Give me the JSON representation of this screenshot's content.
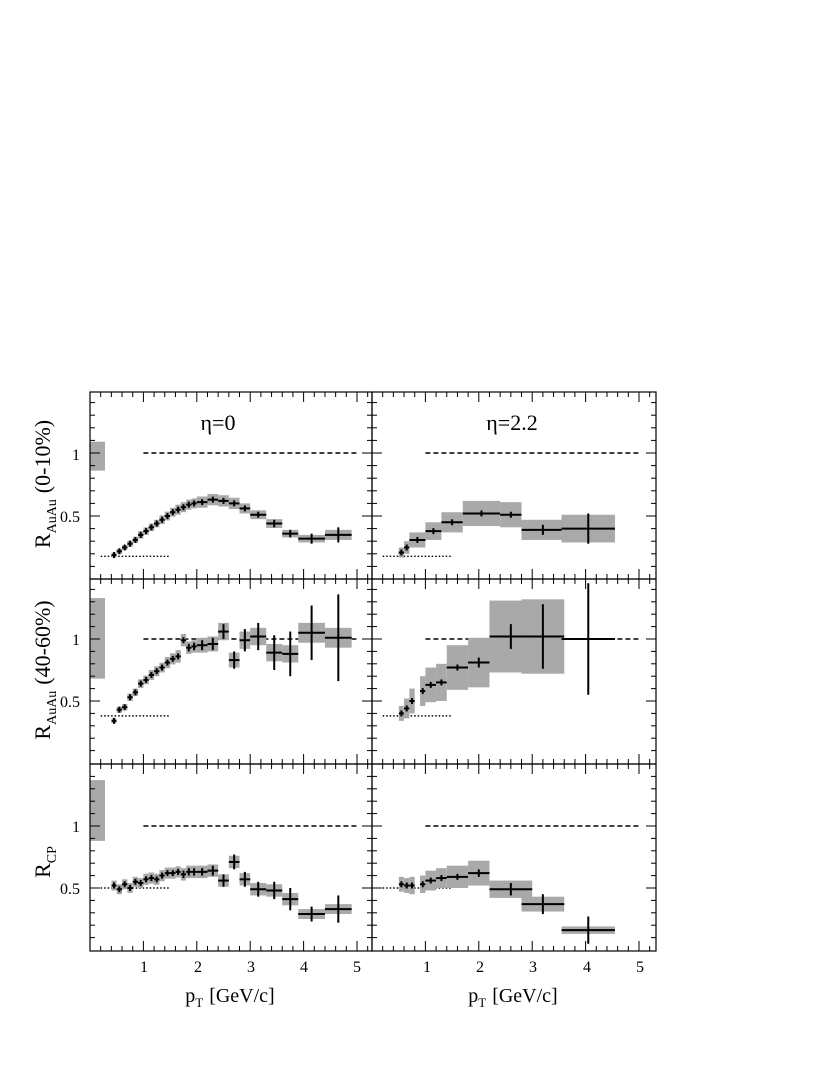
{
  "chart_data": [
    {
      "type": "scatter",
      "panel": "top-left",
      "annotation": "η=0",
      "ylabel": "R_AuAu (0-10%)",
      "xlim": [
        0,
        5.3
      ],
      "ylim": [
        0,
        1.5
      ],
      "reference_line": 1,
      "lower_line": {
        "y": 0.18,
        "x": [
          0.2,
          1.5
        ]
      },
      "norm_band": [
        0.86,
        1.09
      ],
      "points": [
        {
          "x": 0.45,
          "y": 0.19,
          "xe": 0.025,
          "ye": 0.0,
          "sys": 0.02
        },
        {
          "x": 0.55,
          "y": 0.22,
          "xe": 0.05,
          "ye": 0.0,
          "sys": 0.02
        },
        {
          "x": 0.65,
          "y": 0.25,
          "xe": 0.05,
          "ye": 0.0,
          "sys": 0.02
        },
        {
          "x": 0.75,
          "y": 0.28,
          "xe": 0.05,
          "ye": 0.0,
          "sys": 0.025
        },
        {
          "x": 0.85,
          "y": 0.31,
          "xe": 0.05,
          "ye": 0.0,
          "sys": 0.025
        },
        {
          "x": 0.95,
          "y": 0.35,
          "xe": 0.05,
          "ye": 0.0,
          "sys": 0.03
        },
        {
          "x": 1.05,
          "y": 0.38,
          "xe": 0.05,
          "ye": 0.0,
          "sys": 0.03
        },
        {
          "x": 1.15,
          "y": 0.41,
          "xe": 0.05,
          "ye": 0.0,
          "sys": 0.03
        },
        {
          "x": 1.25,
          "y": 0.44,
          "xe": 0.05,
          "ye": 0.0,
          "sys": 0.03
        },
        {
          "x": 1.35,
          "y": 0.47,
          "xe": 0.05,
          "ye": 0.0,
          "sys": 0.035
        },
        {
          "x": 1.45,
          "y": 0.5,
          "xe": 0.05,
          "ye": 0.0,
          "sys": 0.035
        },
        {
          "x": 1.55,
          "y": 0.53,
          "xe": 0.05,
          "ye": 0.0,
          "sys": 0.035
        },
        {
          "x": 1.65,
          "y": 0.55,
          "xe": 0.05,
          "ye": 0.0,
          "sys": 0.04
        },
        {
          "x": 1.75,
          "y": 0.57,
          "xe": 0.05,
          "ye": 0.0,
          "sys": 0.04
        },
        {
          "x": 1.85,
          "y": 0.59,
          "xe": 0.05,
          "ye": 0.0,
          "sys": 0.04
        },
        {
          "x": 1.95,
          "y": 0.6,
          "xe": 0.05,
          "ye": 0.0,
          "sys": 0.04
        },
        {
          "x": 2.1,
          "y": 0.61,
          "xe": 0.1,
          "ye": 0.01,
          "sys": 0.045
        },
        {
          "x": 2.3,
          "y": 0.63,
          "xe": 0.1,
          "ye": 0.01,
          "sys": 0.045
        },
        {
          "x": 2.5,
          "y": 0.62,
          "xe": 0.1,
          "ye": 0.01,
          "sys": 0.045
        },
        {
          "x": 2.7,
          "y": 0.6,
          "xe": 0.1,
          "ye": 0.01,
          "sys": 0.045
        },
        {
          "x": 2.9,
          "y": 0.56,
          "xe": 0.1,
          "ye": 0.02,
          "sys": 0.04
        },
        {
          "x": 3.15,
          "y": 0.51,
          "xe": 0.15,
          "ye": 0.02,
          "sys": 0.035
        },
        {
          "x": 3.45,
          "y": 0.44,
          "xe": 0.15,
          "ye": 0.03,
          "sys": 0.035
        },
        {
          "x": 3.75,
          "y": 0.36,
          "xe": 0.15,
          "ye": 0.03,
          "sys": 0.03
        },
        {
          "x": 4.15,
          "y": 0.32,
          "xe": 0.25,
          "ye": 0.04,
          "sys": 0.03
        },
        {
          "x": 4.65,
          "y": 0.35,
          "xe": 0.25,
          "ye": 0.06,
          "sys": 0.04
        }
      ]
    },
    {
      "type": "scatter",
      "panel": "top-right",
      "annotation": "η=2.2",
      "xlim": [
        0,
        5.3
      ],
      "ylim": [
        0,
        1.5
      ],
      "reference_line": 1,
      "lower_line": {
        "y": 0.18,
        "x": [
          0.2,
          1.5
        ]
      },
      "points": [
        {
          "x": 0.55,
          "y": 0.21,
          "xe": 0.05,
          "ye": 0.0,
          "sys": 0.04
        },
        {
          "x": 0.65,
          "y": 0.25,
          "xe": 0.05,
          "ye": 0.0,
          "sys": 0.05
        },
        {
          "x": 0.85,
          "y": 0.31,
          "xe": 0.15,
          "ye": 0.0,
          "sys": 0.06
        },
        {
          "x": 1.15,
          "y": 0.38,
          "xe": 0.15,
          "ye": 0.0,
          "sys": 0.07
        },
        {
          "x": 1.5,
          "y": 0.45,
          "xe": 0.2,
          "ye": 0.0,
          "sys": 0.08
        },
        {
          "x": 2.05,
          "y": 0.52,
          "xe": 0.35,
          "ye": 0.0,
          "sys": 0.1
        },
        {
          "x": 2.6,
          "y": 0.51,
          "xe": 0.2,
          "ye": 0.02,
          "sys": 0.1
        },
        {
          "x": 3.2,
          "y": 0.39,
          "xe": 0.4,
          "ye": 0.04,
          "sys": 0.08
        },
        {
          "x": 4.05,
          "y": 0.4,
          "xe": 0.5,
          "ye": 0.12,
          "sys": 0.11
        }
      ]
    },
    {
      "type": "scatter",
      "panel": "middle-left",
      "ylabel": "R_AuAu (40-60%)",
      "xlim": [
        0,
        5.3
      ],
      "ylim": [
        0.2,
        1.5
      ],
      "reference_line": 1,
      "lower_line": {
        "y": 0.38,
        "x": [
          0.2,
          1.5
        ]
      },
      "norm_band": [
        0.68,
        1.33
      ],
      "points": [
        {
          "x": 0.45,
          "y": 0.34,
          "xe": 0.025,
          "ye": 0.0,
          "sys": 0.02
        },
        {
          "x": 0.55,
          "y": 0.43,
          "xe": 0.05,
          "ye": 0.0,
          "sys": 0.025
        },
        {
          "x": 0.65,
          "y": 0.45,
          "xe": 0.05,
          "ye": 0.0,
          "sys": 0.025
        },
        {
          "x": 0.75,
          "y": 0.53,
          "xe": 0.05,
          "ye": 0.0,
          "sys": 0.03
        },
        {
          "x": 0.85,
          "y": 0.57,
          "xe": 0.05,
          "ye": 0.0,
          "sys": 0.03
        },
        {
          "x": 0.95,
          "y": 0.64,
          "xe": 0.05,
          "ye": 0.0,
          "sys": 0.035
        },
        {
          "x": 1.05,
          "y": 0.67,
          "xe": 0.05,
          "ye": 0.0,
          "sys": 0.035
        },
        {
          "x": 1.15,
          "y": 0.71,
          "xe": 0.05,
          "ye": 0.0,
          "sys": 0.04
        },
        {
          "x": 1.25,
          "y": 0.74,
          "xe": 0.05,
          "ye": 0.0,
          "sys": 0.04
        },
        {
          "x": 1.35,
          "y": 0.77,
          "xe": 0.05,
          "ye": 0.0,
          "sys": 0.04
        },
        {
          "x": 1.45,
          "y": 0.81,
          "xe": 0.05,
          "ye": 0.0,
          "sys": 0.045
        },
        {
          "x": 1.55,
          "y": 0.84,
          "xe": 0.05,
          "ye": 0.0,
          "sys": 0.045
        },
        {
          "x": 1.65,
          "y": 0.86,
          "xe": 0.05,
          "ye": 0.0,
          "sys": 0.05
        },
        {
          "x": 1.75,
          "y": 0.99,
          "xe": 0.05,
          "ye": 0.02,
          "sys": 0.05
        },
        {
          "x": 1.85,
          "y": 0.93,
          "xe": 0.05,
          "ye": 0.03,
          "sys": 0.05
        },
        {
          "x": 1.95,
          "y": 0.94,
          "xe": 0.05,
          "ye": 0.03,
          "sys": 0.05
        },
        {
          "x": 2.1,
          "y": 0.95,
          "xe": 0.1,
          "ye": 0.04,
          "sys": 0.06
        },
        {
          "x": 2.3,
          "y": 0.96,
          "xe": 0.1,
          "ye": 0.05,
          "sys": 0.06
        },
        {
          "x": 2.5,
          "y": 1.06,
          "xe": 0.1,
          "ye": 0.06,
          "sys": 0.07
        },
        {
          "x": 2.7,
          "y": 0.83,
          "xe": 0.1,
          "ye": 0.07,
          "sys": 0.06
        },
        {
          "x": 2.9,
          "y": 0.99,
          "xe": 0.1,
          "ye": 0.09,
          "sys": 0.07
        },
        {
          "x": 3.15,
          "y": 1.02,
          "xe": 0.15,
          "ye": 0.11,
          "sys": 0.07
        },
        {
          "x": 3.45,
          "y": 0.89,
          "xe": 0.15,
          "ye": 0.14,
          "sys": 0.07
        },
        {
          "x": 3.75,
          "y": 0.88,
          "xe": 0.15,
          "ye": 0.18,
          "sys": 0.07
        },
        {
          "x": 4.15,
          "y": 1.05,
          "xe": 0.25,
          "ye": 0.22,
          "sys": 0.08
        },
        {
          "x": 4.65,
          "y": 1.01,
          "xe": 0.25,
          "ye": 0.35,
          "sys": 0.08
        }
      ]
    },
    {
      "type": "scatter",
      "panel": "middle-right",
      "xlim": [
        0,
        5.3
      ],
      "ylim": [
        0.2,
        1.5
      ],
      "reference_line": 1,
      "lower_line": {
        "y": 0.38,
        "x": [
          0.2,
          1.5
        ]
      },
      "points": [
        {
          "x": 0.55,
          "y": 0.4,
          "xe": 0.025,
          "ye": 0.0,
          "sys": 0.06
        },
        {
          "x": 0.65,
          "y": 0.44,
          "xe": 0.05,
          "ye": 0.0,
          "sys": 0.08
        },
        {
          "x": 0.75,
          "y": 0.5,
          "xe": 0.05,
          "ye": 0.0,
          "sys": 0.1
        },
        {
          "x": 0.95,
          "y": 0.58,
          "xe": 0.05,
          "ye": 0.0,
          "sys": 0.12
        },
        {
          "x": 1.1,
          "y": 0.63,
          "xe": 0.1,
          "ye": 0.0,
          "sys": 0.14
        },
        {
          "x": 1.3,
          "y": 0.65,
          "xe": 0.1,
          "ye": 0.01,
          "sys": 0.15
        },
        {
          "x": 1.6,
          "y": 0.77,
          "xe": 0.2,
          "ye": 0.02,
          "sys": 0.18
        },
        {
          "x": 2.0,
          "y": 0.81,
          "xe": 0.2,
          "ye": 0.04,
          "sys": 0.2
        },
        {
          "x": 2.6,
          "y": 1.02,
          "xe": 0.4,
          "ye": 0.1,
          "sys": 0.29
        },
        {
          "x": 3.2,
          "y": 1.02,
          "xe": 0.4,
          "ye": 0.26,
          "sys": 0.3
        },
        {
          "x": 4.05,
          "y": 1.0,
          "xe": 0.5,
          "ye": 0.45,
          "sys": 0.0
        }
      ]
    },
    {
      "type": "scatter",
      "panel": "bottom-left",
      "ylabel": "R_CP",
      "xlabel": "p_T [GeV/c]",
      "xlim": [
        0,
        5.3
      ],
      "ylim": [
        0.1,
        1.5
      ],
      "reference_line": 1,
      "lower_line": {
        "y": 0.5,
        "x": [
          0.2,
          1.5
        ]
      },
      "norm_band": [
        0.88,
        1.37
      ],
      "x_ticks": [
        1,
        2,
        3,
        4,
        5
      ],
      "points": [
        {
          "x": 0.45,
          "y": 0.52,
          "xe": 0.025,
          "ye": 0.02,
          "sys": 0.04
        },
        {
          "x": 0.55,
          "y": 0.49,
          "xe": 0.05,
          "ye": 0.02,
          "sys": 0.04
        },
        {
          "x": 0.65,
          "y": 0.53,
          "xe": 0.05,
          "ye": 0.02,
          "sys": 0.04
        },
        {
          "x": 0.75,
          "y": 0.5,
          "xe": 0.05,
          "ye": 0.02,
          "sys": 0.04
        },
        {
          "x": 0.85,
          "y": 0.55,
          "xe": 0.05,
          "ye": 0.02,
          "sys": 0.04
        },
        {
          "x": 0.95,
          "y": 0.54,
          "xe": 0.05,
          "ye": 0.02,
          "sys": 0.04
        },
        {
          "x": 1.05,
          "y": 0.57,
          "xe": 0.05,
          "ye": 0.02,
          "sys": 0.045
        },
        {
          "x": 1.15,
          "y": 0.58,
          "xe": 0.05,
          "ye": 0.02,
          "sys": 0.045
        },
        {
          "x": 1.25,
          "y": 0.57,
          "xe": 0.05,
          "ye": 0.02,
          "sys": 0.045
        },
        {
          "x": 1.35,
          "y": 0.6,
          "xe": 0.05,
          "ye": 0.02,
          "sys": 0.045
        },
        {
          "x": 1.45,
          "y": 0.62,
          "xe": 0.05,
          "ye": 0.02,
          "sys": 0.045
        },
        {
          "x": 1.55,
          "y": 0.62,
          "xe": 0.05,
          "ye": 0.02,
          "sys": 0.045
        },
        {
          "x": 1.65,
          "y": 0.63,
          "xe": 0.05,
          "ye": 0.02,
          "sys": 0.045
        },
        {
          "x": 1.75,
          "y": 0.61,
          "xe": 0.05,
          "ye": 0.03,
          "sys": 0.05
        },
        {
          "x": 1.85,
          "y": 0.63,
          "xe": 0.05,
          "ye": 0.03,
          "sys": 0.05
        },
        {
          "x": 1.95,
          "y": 0.63,
          "xe": 0.05,
          "ye": 0.03,
          "sys": 0.05
        },
        {
          "x": 2.1,
          "y": 0.63,
          "xe": 0.1,
          "ye": 0.03,
          "sys": 0.05
        },
        {
          "x": 2.3,
          "y": 0.64,
          "xe": 0.1,
          "ye": 0.04,
          "sys": 0.05
        },
        {
          "x": 2.5,
          "y": 0.56,
          "xe": 0.1,
          "ye": 0.05,
          "sys": 0.05
        },
        {
          "x": 2.7,
          "y": 0.71,
          "xe": 0.1,
          "ye": 0.06,
          "sys": 0.05
        },
        {
          "x": 2.9,
          "y": 0.57,
          "xe": 0.1,
          "ye": 0.06,
          "sys": 0.05
        },
        {
          "x": 3.15,
          "y": 0.49,
          "xe": 0.15,
          "ye": 0.06,
          "sys": 0.05
        },
        {
          "x": 3.45,
          "y": 0.48,
          "xe": 0.15,
          "ye": 0.07,
          "sys": 0.05
        },
        {
          "x": 3.75,
          "y": 0.41,
          "xe": 0.15,
          "ye": 0.09,
          "sys": 0.05
        },
        {
          "x": 4.15,
          "y": 0.29,
          "xe": 0.25,
          "ye": 0.06,
          "sys": 0.04
        },
        {
          "x": 4.65,
          "y": 0.33,
          "xe": 0.25,
          "ye": 0.11,
          "sys": 0.04
        }
      ]
    },
    {
      "type": "scatter",
      "panel": "bottom-right",
      "xlabel": "p_T [GeV/c]",
      "xlim": [
        0,
        5.3
      ],
      "ylim": [
        0.1,
        1.5
      ],
      "reference_line": 1,
      "lower_line": {
        "y": 0.5,
        "x": [
          0.2,
          1.5
        ]
      },
      "x_ticks": [
        1,
        2,
        3,
        4,
        5
      ],
      "points": [
        {
          "x": 0.55,
          "y": 0.53,
          "xe": 0.025,
          "ye": 0.0,
          "sys": 0.06
        },
        {
          "x": 0.65,
          "y": 0.52,
          "xe": 0.05,
          "ye": 0.0,
          "sys": 0.06
        },
        {
          "x": 0.75,
          "y": 0.52,
          "xe": 0.05,
          "ye": 0.0,
          "sys": 0.07
        },
        {
          "x": 0.95,
          "y": 0.53,
          "xe": 0.05,
          "ye": 0.0,
          "sys": 0.07
        },
        {
          "x": 1.1,
          "y": 0.56,
          "xe": 0.1,
          "ye": 0.0,
          "sys": 0.08
        },
        {
          "x": 1.3,
          "y": 0.58,
          "xe": 0.1,
          "ye": 0.01,
          "sys": 0.08
        },
        {
          "x": 1.6,
          "y": 0.59,
          "xe": 0.2,
          "ye": 0.01,
          "sys": 0.09
        },
        {
          "x": 2.0,
          "y": 0.62,
          "xe": 0.2,
          "ye": 0.03,
          "sys": 0.1
        },
        {
          "x": 2.6,
          "y": 0.49,
          "xe": 0.4,
          "ye": 0.05,
          "sys": 0.07
        },
        {
          "x": 3.2,
          "y": 0.37,
          "xe": 0.4,
          "ye": 0.08,
          "sys": 0.06
        },
        {
          "x": 4.05,
          "y": 0.16,
          "xe": 0.5,
          "ye": 0.11,
          "sys": 0.03
        }
      ]
    }
  ],
  "labels": {
    "eta0": "η=0",
    "eta22": "η=2.2",
    "row1_main": "R",
    "row1_sub": "AuAu",
    "row1_tail": "(0-10%)",
    "row2_main": "R",
    "row2_sub": "AuAu",
    "row2_tail": "(40-60%)",
    "row3_main": "R",
    "row3_sub": "CP",
    "x_main": "p",
    "x_sub": "T",
    "x_tail": "[GeV/c]",
    "ytick_1": "1",
    "ytick_05": "0.5",
    "xtick_1": "1",
    "xtick_2": "2",
    "xtick_3": "3",
    "xtick_4": "4",
    "xtick_5": "5"
  },
  "colors": {
    "band": "#a9a9a9",
    "axis": "#000000"
  }
}
